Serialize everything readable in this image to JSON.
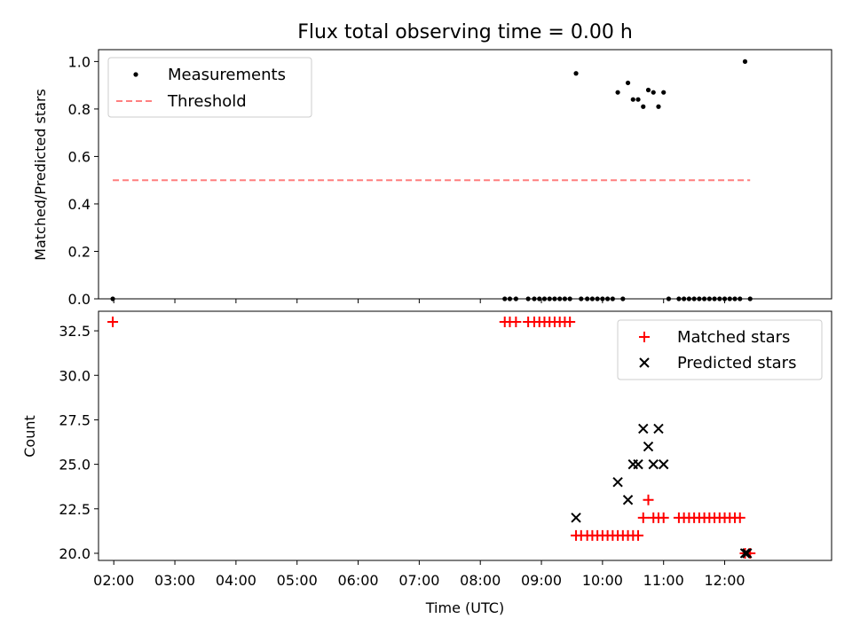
{
  "chart_data": [
    {
      "type": "scatter",
      "title": "Flux total observing time = 0.00 h",
      "ylabel": "Matched/Predicted stars",
      "xlim": [
        "01:45",
        "13:45"
      ],
      "ylim": [
        0.0,
        1.05
      ],
      "yticks": [
        "0.0",
        "0.2",
        "0.4",
        "0.6",
        "0.8",
        "1.0"
      ],
      "grid": false,
      "legend_position": "top-left",
      "series": [
        {
          "name": "Measurements",
          "marker": "dot",
          "color": "#000000",
          "points": [
            [
              "01:59",
              0.0
            ],
            [
              "08:24",
              0.0
            ],
            [
              "08:29",
              0.0
            ],
            [
              "08:35",
              0.0
            ],
            [
              "08:47",
              0.0
            ],
            [
              "08:53",
              0.0
            ],
            [
              "08:58",
              0.0
            ],
            [
              "09:03",
              0.0
            ],
            [
              "09:08",
              0.0
            ],
            [
              "09:13",
              0.0
            ],
            [
              "09:18",
              0.0
            ],
            [
              "09:23",
              0.0
            ],
            [
              "09:28",
              0.0
            ],
            [
              "09:34",
              0.95
            ],
            [
              "09:39",
              0.0
            ],
            [
              "09:45",
              0.0
            ],
            [
              "09:50",
              0.0
            ],
            [
              "09:55",
              0.0
            ],
            [
              "10:00",
              0.0
            ],
            [
              "10:05",
              0.0
            ],
            [
              "10:10",
              0.0
            ],
            [
              "10:15",
              0.87
            ],
            [
              "10:20",
              0.0
            ],
            [
              "10:25",
              0.91
            ],
            [
              "10:30",
              0.84
            ],
            [
              "10:35",
              0.84
            ],
            [
              "10:40",
              0.81
            ],
            [
              "10:45",
              0.88
            ],
            [
              "10:50",
              0.87
            ],
            [
              "10:55",
              0.81
            ],
            [
              "11:00",
              0.87
            ],
            [
              "11:05",
              0.0
            ],
            [
              "11:15",
              0.0
            ],
            [
              "11:20",
              0.0
            ],
            [
              "11:25",
              0.0
            ],
            [
              "11:30",
              0.0
            ],
            [
              "11:35",
              0.0
            ],
            [
              "11:40",
              0.0
            ],
            [
              "11:45",
              0.0
            ],
            [
              "11:50",
              0.0
            ],
            [
              "11:55",
              0.0
            ],
            [
              "12:00",
              0.0
            ],
            [
              "12:05",
              0.0
            ],
            [
              "12:10",
              0.0
            ],
            [
              "12:15",
              0.0
            ],
            [
              "12:20",
              1.0
            ],
            [
              "12:25",
              0.0
            ]
          ]
        },
        {
          "name": "Threshold",
          "marker": "dashed-line",
          "color": "#ff7f7f",
          "points": [
            [
              "01:59",
              0.5
            ],
            [
              "12:25",
              0.5
            ]
          ]
        }
      ]
    },
    {
      "type": "scatter",
      "title": "",
      "xlabel": "Time (UTC)",
      "ylabel": "Count",
      "xlim": [
        "01:45",
        "13:45"
      ],
      "ylim": [
        19.6,
        33.6
      ],
      "yticks": [
        "20.0",
        "22.5",
        "25.0",
        "27.5",
        "30.0",
        "32.5"
      ],
      "xticks": [
        "02:00",
        "03:00",
        "04:00",
        "05:00",
        "06:00",
        "07:00",
        "08:00",
        "09:00",
        "10:00",
        "11:00",
        "12:00"
      ],
      "grid": false,
      "legend_position": "top-right",
      "series": [
        {
          "name": "Matched stars",
          "marker": "plus",
          "color": "#ff0000",
          "points": [
            [
              "01:59",
              33
            ],
            [
              "08:24",
              33
            ],
            [
              "08:29",
              33
            ],
            [
              "08:35",
              33
            ],
            [
              "08:47",
              33
            ],
            [
              "08:53",
              33
            ],
            [
              "08:58",
              33
            ],
            [
              "09:03",
              33
            ],
            [
              "09:08",
              33
            ],
            [
              "09:13",
              33
            ],
            [
              "09:18",
              33
            ],
            [
              "09:23",
              33
            ],
            [
              "09:28",
              33
            ],
            [
              "09:34",
              21
            ],
            [
              "09:39",
              21
            ],
            [
              "09:45",
              21
            ],
            [
              "09:50",
              21
            ],
            [
              "09:55",
              21
            ],
            [
              "10:00",
              21
            ],
            [
              "10:05",
              21
            ],
            [
              "10:10",
              21
            ],
            [
              "10:15",
              21
            ],
            [
              "10:20",
              21
            ],
            [
              "10:25",
              21
            ],
            [
              "10:30",
              21
            ],
            [
              "10:35",
              21
            ],
            [
              "10:40",
              22
            ],
            [
              "10:45",
              23
            ],
            [
              "10:50",
              22
            ],
            [
              "10:55",
              22
            ],
            [
              "11:00",
              22
            ],
            [
              "11:15",
              22
            ],
            [
              "11:20",
              22
            ],
            [
              "11:25",
              22
            ],
            [
              "11:30",
              22
            ],
            [
              "11:35",
              22
            ],
            [
              "11:40",
              22
            ],
            [
              "11:45",
              22
            ],
            [
              "11:50",
              22
            ],
            [
              "11:55",
              22
            ],
            [
              "12:00",
              22
            ],
            [
              "12:05",
              22
            ],
            [
              "12:10",
              22
            ],
            [
              "12:15",
              22
            ],
            [
              "12:20",
              20
            ],
            [
              "12:25",
              20
            ]
          ]
        },
        {
          "name": "Predicted stars",
          "marker": "x",
          "color": "#000000",
          "points": [
            [
              "09:34",
              22
            ],
            [
              "10:15",
              24
            ],
            [
              "10:25",
              23
            ],
            [
              "10:30",
              25
            ],
            [
              "10:35",
              25
            ],
            [
              "10:40",
              27
            ],
            [
              "10:45",
              26
            ],
            [
              "10:50",
              25
            ],
            [
              "10:55",
              27
            ],
            [
              "11:00",
              25
            ],
            [
              "12:20",
              20
            ],
            [
              "12:22",
              20
            ]
          ]
        }
      ]
    }
  ]
}
